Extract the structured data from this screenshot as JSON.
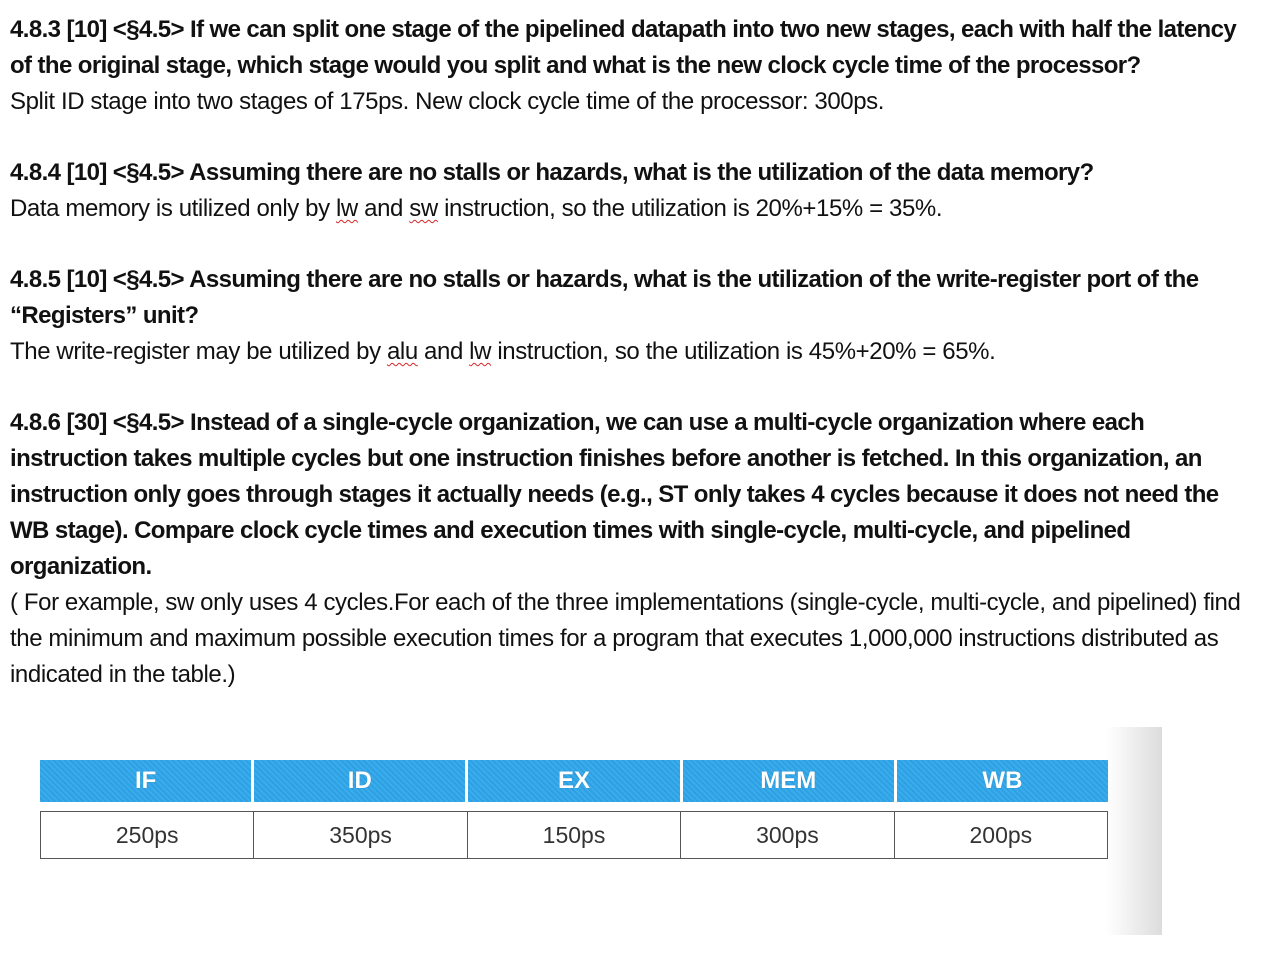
{
  "sections": [
    {
      "question": "4.8.3 [10] <§4.5> If we can split one stage of the pipelined datapath into two new stages, each with half the latency of the original stage, which stage would you split and what is the new clock cycle time of the processor?",
      "answer": "Split ID stage into two stages of  175ps. New clock cycle time of the processor: 300ps."
    },
    {
      "question": "4.8.4 [10] <§4.5> Assuming there are no stalls or hazards, what is the utilization of the data memory?",
      "answer_parts": {
        "a": "Data memory is utilized only by ",
        "b": "lw",
        "c": " and ",
        "d": "sw",
        "e": " instruction, so the utilization is 20%+15% = 35%."
      }
    },
    {
      "question": "4.8.5 [10] <§4.5> Assuming there are no stalls or hazards, what is the utilization of the write-register port of the “Registers” unit?",
      "answer_parts": {
        "a": "The write-register may be utilized by ",
        "b": "alu",
        "c": " and ",
        "d": "lw",
        "e": " instruction,  so the utilization is 45%+20% = 65%."
      }
    },
    {
      "question": "4.8.6 [30] <§4.5> Instead of a single-cycle organization, we can use a multi-cycle organization where each instruction takes multiple cycles but one instruction finishes before another is fetched. In this organization, an instruction only goes through stages it actually needs (e.g., ST only takes 4 cycles because it does not need the WB stage). Compare clock cycle times and execution times with single-cycle, multi-cycle, and pipelined organization.",
      "answer": "( For example, sw only uses 4 cycles.For each of the three implementations (single-cycle, multi-cycle, and pipelined) find the minimum and maximum possible execution times for a program that executes 1,000,000 instructions distributed as indicated in the table.)"
    }
  ],
  "table": {
    "headers": [
      "IF",
      "ID",
      "EX",
      "MEM",
      "WB"
    ],
    "values": [
      "250ps",
      "350ps",
      "150ps",
      "300ps",
      "200ps"
    ],
    "header_color": "#2ea6ea"
  }
}
